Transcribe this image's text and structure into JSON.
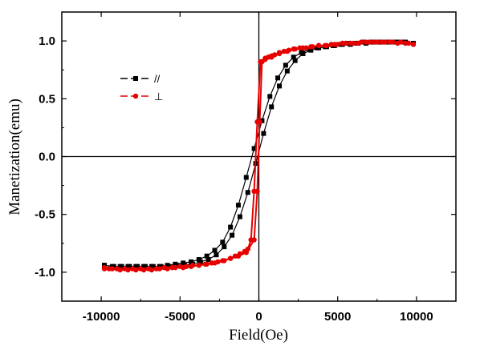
{
  "chart_data": {
    "type": "scatter",
    "xlabel": "Field(Oe)",
    "ylabel": "Manetization(emu)",
    "xlim": [
      -12500,
      12500
    ],
    "ylim": [
      -1.25,
      1.25
    ],
    "x_ticks": [
      -10000,
      -5000,
      0,
      5000,
      10000
    ],
    "x_tick_labels": [
      "-10000",
      "-5000",
      "0",
      "5000",
      "10000"
    ],
    "y_ticks": [
      -1.0,
      -0.5,
      0.0,
      0.5,
      1.0
    ],
    "y_tick_labels": [
      "-1.0",
      "-0.5",
      "0.0",
      "0.5",
      "1.0"
    ],
    "zero_lines": true,
    "grid": false,
    "legend_position": "upper-left",
    "series": [
      {
        "name": "//",
        "color": "#000000",
        "marker": "square",
        "line": "solid",
        "x": [
          -9800,
          -9300,
          -8800,
          -8300,
          -7800,
          -7300,
          -6800,
          -6300,
          -5800,
          -5300,
          -4800,
          -4300,
          -3800,
          -3300,
          -2800,
          -2300,
          -1800,
          -1300,
          -800,
          -300,
          200,
          700,
          1200,
          1700,
          2200,
          2700,
          3200,
          3700,
          4200,
          4700,
          5200,
          5700,
          6200,
          6700,
          7200,
          7700,
          8200,
          8700,
          9200,
          9800,
          9300,
          8800,
          8300,
          7800,
          7300,
          6800,
          6300,
          5800,
          5300,
          4800,
          4300,
          3800,
          3300,
          2800,
          2300,
          1800,
          1300,
          800,
          300,
          -200,
          -700,
          -1200,
          -1700,
          -2200,
          -2700,
          -3200,
          -3700,
          -4200,
          -4700,
          -5200,
          -5700,
          -6200,
          -6700,
          -7200,
          -7700,
          -8200,
          -8700,
          -9200,
          -9800
        ],
        "y": [
          -0.94,
          -0.95,
          -0.95,
          -0.95,
          -0.95,
          -0.95,
          -0.95,
          -0.95,
          -0.94,
          -0.93,
          -0.92,
          -0.91,
          -0.89,
          -0.86,
          -0.81,
          -0.74,
          -0.61,
          -0.42,
          -0.18,
          0.07,
          0.31,
          0.52,
          0.68,
          0.79,
          0.86,
          0.9,
          0.93,
          0.94,
          0.95,
          0.96,
          0.97,
          0.98,
          0.98,
          0.99,
          0.99,
          0.99,
          0.99,
          0.99,
          0.99,
          0.98,
          0.99,
          0.99,
          0.99,
          0.99,
          0.99,
          0.98,
          0.98,
          0.97,
          0.97,
          0.96,
          0.95,
          0.94,
          0.92,
          0.89,
          0.83,
          0.74,
          0.61,
          0.43,
          0.2,
          -0.06,
          -0.31,
          -0.52,
          -0.68,
          -0.78,
          -0.85,
          -0.89,
          -0.91,
          -0.93,
          -0.94,
          -0.94,
          -0.95,
          -0.95,
          -0.95,
          -0.95,
          -0.95,
          -0.95,
          -0.95,
          -0.95,
          -0.94
        ]
      },
      {
        "name": "⊥",
        "color": "#e60000",
        "marker": "circle",
        "line": "solid",
        "x": [
          -9800,
          -9300,
          -8800,
          -8300,
          -7800,
          -7300,
          -6800,
          -6300,
          -5800,
          -5300,
          -4800,
          -4300,
          -3800,
          -3300,
          -2800,
          -2300,
          -1800,
          -1300,
          -800,
          -300,
          -100,
          50,
          200,
          400,
          600,
          800,
          1000,
          1300,
          1600,
          1900,
          2200,
          2600,
          3000,
          3400,
          3800,
          4200,
          4600,
          5000,
          5500,
          6000,
          6500,
          7000,
          7500,
          8000,
          8500,
          9000,
          9500,
          9800,
          9300,
          8800,
          8300,
          7800,
          7300,
          6800,
          6300,
          5800,
          5300,
          4800,
          4300,
          3800,
          3300,
          2800,
          2300,
          1800,
          1300,
          800,
          400,
          100,
          -100,
          -300,
          -500,
          -700,
          -900,
          -1200,
          -1500,
          -1800,
          -2200,
          -2600,
          -3000,
          -3400,
          -3800,
          -4200,
          -4600,
          -5000,
          -5500,
          -6000,
          -6500,
          -7000,
          -7500,
          -8000,
          -8500,
          -9000,
          -9500,
          -9800
        ],
        "y": [
          -0.97,
          -0.97,
          -0.98,
          -0.98,
          -0.98,
          -0.98,
          -0.98,
          -0.97,
          -0.97,
          -0.96,
          -0.96,
          -0.95,
          -0.94,
          -0.93,
          -0.92,
          -0.9,
          -0.88,
          -0.86,
          -0.83,
          -0.72,
          -0.3,
          0.3,
          0.82,
          0.85,
          0.86,
          0.87,
          0.88,
          0.9,
          0.91,
          0.92,
          0.93,
          0.94,
          0.94,
          0.95,
          0.96,
          0.96,
          0.97,
          0.97,
          0.98,
          0.98,
          0.99,
          0.99,
          0.99,
          0.99,
          0.99,
          0.99,
          0.98,
          0.97,
          0.98,
          0.98,
          0.99,
          0.99,
          0.99,
          0.99,
          0.98,
          0.98,
          0.98,
          0.97,
          0.96,
          0.96,
          0.95,
          0.94,
          0.93,
          0.91,
          0.89,
          0.86,
          0.84,
          0.82,
          0.3,
          -0.3,
          -0.72,
          -0.8,
          -0.82,
          -0.84,
          -0.86,
          -0.88,
          -0.9,
          -0.91,
          -0.92,
          -0.93,
          -0.94,
          -0.94,
          -0.95,
          -0.95,
          -0.96,
          -0.96,
          -0.97,
          -0.97,
          -0.97,
          -0.97,
          -0.97,
          -0.97,
          -0.97,
          -0.96
        ]
      }
    ]
  }
}
